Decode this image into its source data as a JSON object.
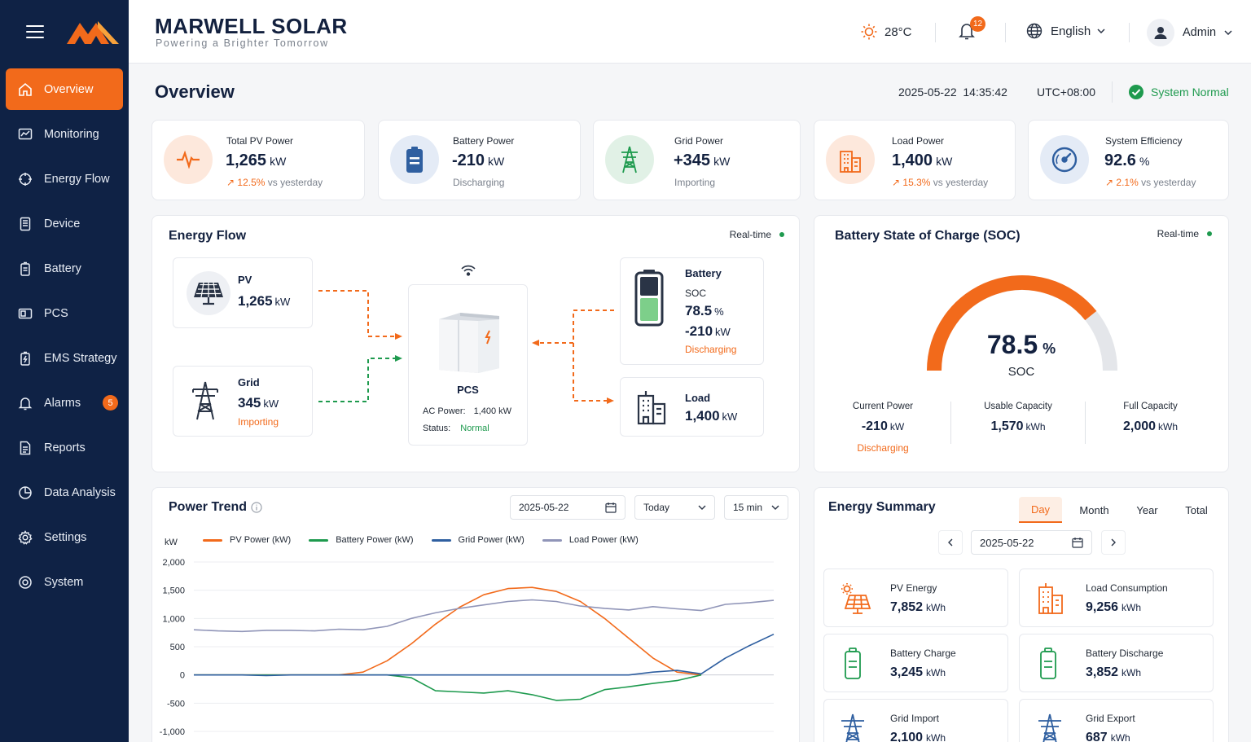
{
  "brand": {
    "name": "MARWELL SOLAR",
    "tagline": "Powering a Brighter Tomorrow"
  },
  "sidebar": {
    "items": [
      {
        "label": "Overview",
        "icon": "home-icon"
      },
      {
        "label": "Monitoring",
        "icon": "chart-icon"
      },
      {
        "label": "Energy Flow",
        "icon": "energy-flow-icon"
      },
      {
        "label": "Device",
        "icon": "device-icon"
      },
      {
        "label": "Battery",
        "icon": "battery-icon"
      },
      {
        "label": "PCS",
        "icon": "pcs-icon"
      },
      {
        "label": "EMS Strategy",
        "icon": "ems-icon"
      },
      {
        "label": "Alarms",
        "icon": "bell-icon",
        "badge": "5"
      },
      {
        "label": "Reports",
        "icon": "report-icon"
      },
      {
        "label": "Data Analysis",
        "icon": "analysis-icon"
      },
      {
        "label": "Settings",
        "icon": "gear-icon"
      },
      {
        "label": "System",
        "icon": "system-icon"
      }
    ]
  },
  "header": {
    "temperature": "28°C",
    "notifications": "12",
    "language": "English",
    "user": "Admin"
  },
  "page": {
    "title": "Overview",
    "datetime": "2025-05-22  14:35:42",
    "timezone": "UTC+08:00",
    "status": "System Normal"
  },
  "kpis": [
    {
      "label": "Total PV Power",
      "value": "1,265",
      "unit": "kW",
      "change": "12.5%",
      "suffix": "vs yesterday"
    },
    {
      "label": "Battery Power",
      "value": "-210",
      "unit": "kW",
      "sub": "Discharging"
    },
    {
      "label": "Grid Power",
      "value": "+345",
      "unit": "kW",
      "sub": "Importing"
    },
    {
      "label": "Load Power",
      "value": "1,400",
      "unit": "kW",
      "change": "15.3%",
      "suffix": "vs yesterday"
    },
    {
      "label": "System Efficiency",
      "value": "92.6",
      "unit": "%",
      "change": "2.1%",
      "suffix": "vs yesterday"
    }
  ],
  "energy_flow": {
    "title": "Energy Flow",
    "realtime": "Real-time",
    "pv": {
      "label": "PV",
      "value": "1,265",
      "unit": "kW"
    },
    "grid": {
      "label": "Grid",
      "value": "345",
      "unit": "kW",
      "status": "Importing"
    },
    "pcs": {
      "label": "PCS",
      "ac_label": "AC Power:",
      "ac_value": "1,400 kW",
      "status_label": "Status:",
      "status_value": "Normal"
    },
    "battery": {
      "label": "Battery",
      "soc_label": "SOC",
      "soc": "78.5",
      "soc_unit": "%",
      "power": "-210",
      "unit": "kW",
      "status": "Discharging"
    },
    "load": {
      "label": "Load",
      "value": "1,400",
      "unit": "kW"
    }
  },
  "soc": {
    "title": "Battery State of Charge (SOC)",
    "realtime": "Real-time",
    "value": 78.5,
    "value_text": "78.5",
    "unit": "%",
    "label": "SOC",
    "current": {
      "label": "Current Power",
      "value": "-210",
      "unit": "kW",
      "status": "Discharging"
    },
    "usable": {
      "label": "Usable Capacity",
      "value": "1,570",
      "unit": "kWh"
    },
    "full": {
      "label": "Full Capacity",
      "value": "2,000",
      "unit": "kWh"
    }
  },
  "power_trend": {
    "title": "Power Trend",
    "date": "2025-05-22",
    "range": "Today",
    "interval": "15 min",
    "unit_label": "kW"
  },
  "chart_data": {
    "type": "line",
    "ylabel": "kW",
    "ylim": [
      -1000,
      2000
    ],
    "yticks": [
      "2,000",
      "1,500",
      "1,000",
      "500",
      "0",
      "-500",
      "-1,000"
    ],
    "ytick_values": [
      2000,
      1500,
      1000,
      500,
      0,
      -500,
      -1000
    ],
    "x": [
      0,
      1,
      2,
      3,
      4,
      5,
      6,
      7,
      8,
      9,
      10,
      11,
      12,
      13,
      14,
      15,
      16,
      17,
      18,
      19,
      20,
      21,
      22,
      23,
      24
    ],
    "series": [
      {
        "name": "PV Power (kW)",
        "color": "#f26a1b",
        "values": [
          0,
          0,
          0,
          0,
          0,
          0,
          0,
          50,
          250,
          550,
          900,
          1200,
          1420,
          1530,
          1550,
          1480,
          1300,
          1000,
          650,
          300,
          50,
          0,
          null,
          null,
          null
        ]
      },
      {
        "name": "Battery Power (kW)",
        "color": "#1e9a4e",
        "values": [
          0,
          0,
          0,
          0,
          0,
          0,
          0,
          0,
          0,
          -50,
          -280,
          -300,
          -320,
          -280,
          -350,
          -450,
          -430,
          -260,
          -210,
          -150,
          -100,
          0,
          null,
          null,
          null
        ]
      },
      {
        "name": "Grid Power (kW)",
        "color": "#2f5fa0",
        "values": [
          0,
          0,
          0,
          -10,
          0,
          0,
          0,
          0,
          0,
          0,
          0,
          0,
          0,
          0,
          0,
          0,
          0,
          0,
          0,
          50,
          80,
          20,
          300,
          520,
          720
        ]
      },
      {
        "name": "Load Power (kW)",
        "color": "#9095b8",
        "values": [
          800,
          780,
          770,
          790,
          790,
          780,
          810,
          800,
          860,
          1000,
          1100,
          1180,
          1240,
          1300,
          1330,
          1300,
          1220,
          1180,
          1150,
          1210,
          1170,
          1140,
          1250,
          1280,
          1320
        ]
      }
    ]
  },
  "energy_summary": {
    "title": "Energy Summary",
    "tabs": [
      "Day",
      "Month",
      "Year",
      "Total"
    ],
    "active_tab": "Day",
    "date": "2025-05-22",
    "items": [
      {
        "label": "PV Energy",
        "value": "7,852",
        "unit": "kWh"
      },
      {
        "label": "Load Consumption",
        "value": "9,256",
        "unit": "kWh"
      },
      {
        "label": "Battery Charge",
        "value": "3,245",
        "unit": "kWh"
      },
      {
        "label": "Battery Discharge",
        "value": "3,852",
        "unit": "kWh"
      },
      {
        "label": "Grid Import",
        "value": "2,100",
        "unit": "kWh"
      },
      {
        "label": "Grid Export",
        "value": "687",
        "unit": "kWh"
      }
    ]
  },
  "colors": {
    "sidebar": "#0f2245",
    "accent": "#f26a1b",
    "success": "#1e9a4e",
    "navy": "#13213f"
  }
}
